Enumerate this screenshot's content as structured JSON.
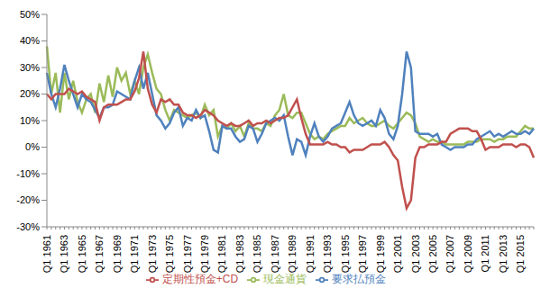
{
  "chart_data": {
    "type": "line",
    "categories": [
      "Q1 1961",
      null,
      null,
      null,
      "Q1 1963",
      null,
      null,
      null,
      "Q1 1965",
      null,
      null,
      null,
      "Q1 1967",
      null,
      null,
      null,
      "Q1 1969",
      null,
      null,
      null,
      "Q1 1971",
      null,
      null,
      null,
      "Q1 1973",
      null,
      null,
      null,
      "Q1 1975",
      null,
      null,
      null,
      "Q1 1977",
      null,
      null,
      null,
      "Q1 1979",
      null,
      null,
      null,
      "Q1 1981",
      null,
      null,
      null,
      "Q1 1983",
      null,
      null,
      null,
      "Q1 1985",
      null,
      null,
      null,
      "Q1 1987",
      null,
      null,
      null,
      "Q1 1989",
      null,
      null,
      null,
      "Q1 1991",
      null,
      null,
      null,
      "Q1 1993",
      null,
      null,
      null,
      "Q1 1995",
      null,
      null,
      null,
      "Q1 1997",
      null,
      null,
      null,
      "Q1 1999",
      null,
      null,
      null,
      "Q1 2001",
      null,
      null,
      null,
      "Q1 2003",
      null,
      null,
      null,
      "Q1 2005",
      null,
      null,
      null,
      "Q1 2007",
      null,
      null,
      null,
      "Q1 2009",
      null,
      null,
      null,
      "Q1 2011",
      null,
      null,
      null,
      "Q1 2013",
      null,
      null,
      null,
      "Q1 2015",
      null,
      null,
      null
    ],
    "series": [
      {
        "name": "現金通貨",
        "color": "#9bbb59",
        "values": [
          38,
          20,
          28,
          13,
          28,
          18,
          25,
          17,
          13,
          18,
          20,
          13,
          24,
          17,
          27,
          19,
          30,
          25,
          28,
          20,
          25,
          20,
          30,
          35,
          28,
          22,
          20,
          14,
          10,
          14,
          13,
          12,
          11,
          12,
          13,
          11,
          16,
          12,
          14,
          4,
          8,
          7,
          9,
          6,
          8,
          4,
          9,
          7,
          7,
          6,
          9,
          8,
          12,
          14,
          20,
          12,
          11,
          13,
          13,
          9,
          5,
          3,
          4,
          3,
          5,
          6,
          7,
          8,
          8,
          11,
          9,
          10,
          11,
          9,
          8,
          8,
          9,
          10,
          8,
          7,
          9,
          11,
          13,
          12,
          9,
          4,
          3,
          2,
          3,
          2,
          2,
          1,
          1,
          1,
          1,
          1,
          2,
          2,
          2,
          3,
          3,
          3,
          2,
          3,
          3,
          4,
          4,
          4,
          6,
          8,
          7,
          7
        ]
      },
      {
        "name": "要求払預金",
        "color": "#4f81bd",
        "values": [
          28,
          20,
          15,
          22,
          31,
          25,
          20,
          15,
          20,
          18,
          17,
          14,
          11,
          15,
          15,
          16,
          21,
          20,
          19,
          18,
          25,
          30,
          22,
          28,
          20,
          12,
          10,
          7,
          9,
          13,
          15,
          8,
          11,
          10,
          14,
          11,
          12,
          6,
          -1,
          -2,
          8,
          7,
          7,
          4,
          2,
          3,
          8,
          7,
          2,
          5,
          9,
          10,
          11,
          10,
          12,
          4,
          -3,
          3,
          2,
          -3,
          4,
          9,
          4,
          2,
          4,
          7,
          8,
          9,
          13,
          17,
          12,
          9,
          8,
          9,
          10,
          8,
          14,
          11,
          5,
          3,
          8,
          20,
          36,
          30,
          6,
          5,
          5,
          5,
          4,
          5,
          1,
          0,
          -1,
          0,
          0,
          0,
          1,
          1,
          3,
          4,
          5,
          6,
          4,
          5,
          4,
          5,
          6,
          5,
          5,
          6,
          5,
          7
        ]
      },
      {
        "name": "定期性預金+CD",
        "color": "#c0504d",
        "values": [
          20,
          18,
          20,
          20,
          20,
          22,
          21,
          20,
          21,
          19,
          18,
          17,
          10,
          15,
          16,
          16,
          16,
          17,
          18,
          18,
          21,
          26,
          36,
          22,
          16,
          13,
          18,
          17,
          18,
          16,
          16,
          13,
          12,
          12,
          11,
          12,
          14,
          13,
          12,
          10,
          9,
          8,
          9,
          8,
          8,
          9,
          10,
          8,
          9,
          9,
          10,
          9,
          10,
          11,
          11,
          12,
          15,
          18,
          11,
          5,
          1,
          1,
          1,
          1,
          2,
          1,
          1,
          0,
          0,
          -2,
          -1,
          -1,
          -1,
          0,
          1,
          1,
          1,
          2,
          0,
          -3,
          -5,
          -15,
          -23,
          -20,
          -4,
          0,
          0,
          1,
          1,
          1,
          2,
          2,
          5,
          6,
          7,
          7,
          7,
          6,
          6,
          3,
          -1,
          0,
          0,
          0,
          1,
          1,
          1,
          0,
          1,
          1,
          0,
          -4
        ]
      }
    ],
    "ylim": [
      -30,
      50
    ],
    "yticks": [
      {
        "value": -30,
        "label": "-30%"
      },
      {
        "value": -20,
        "label": "-20%"
      },
      {
        "value": -10,
        "label": "-10%"
      },
      {
        "value": 0,
        "label": "0%"
      },
      {
        "value": 10,
        "label": "10%"
      },
      {
        "value": 20,
        "label": "20%"
      },
      {
        "value": 30,
        "label": "30%"
      },
      {
        "value": 40,
        "label": "40%"
      },
      {
        "value": 50,
        "label": "50%"
      }
    ],
    "grid": false,
    "legend": "bottom"
  }
}
